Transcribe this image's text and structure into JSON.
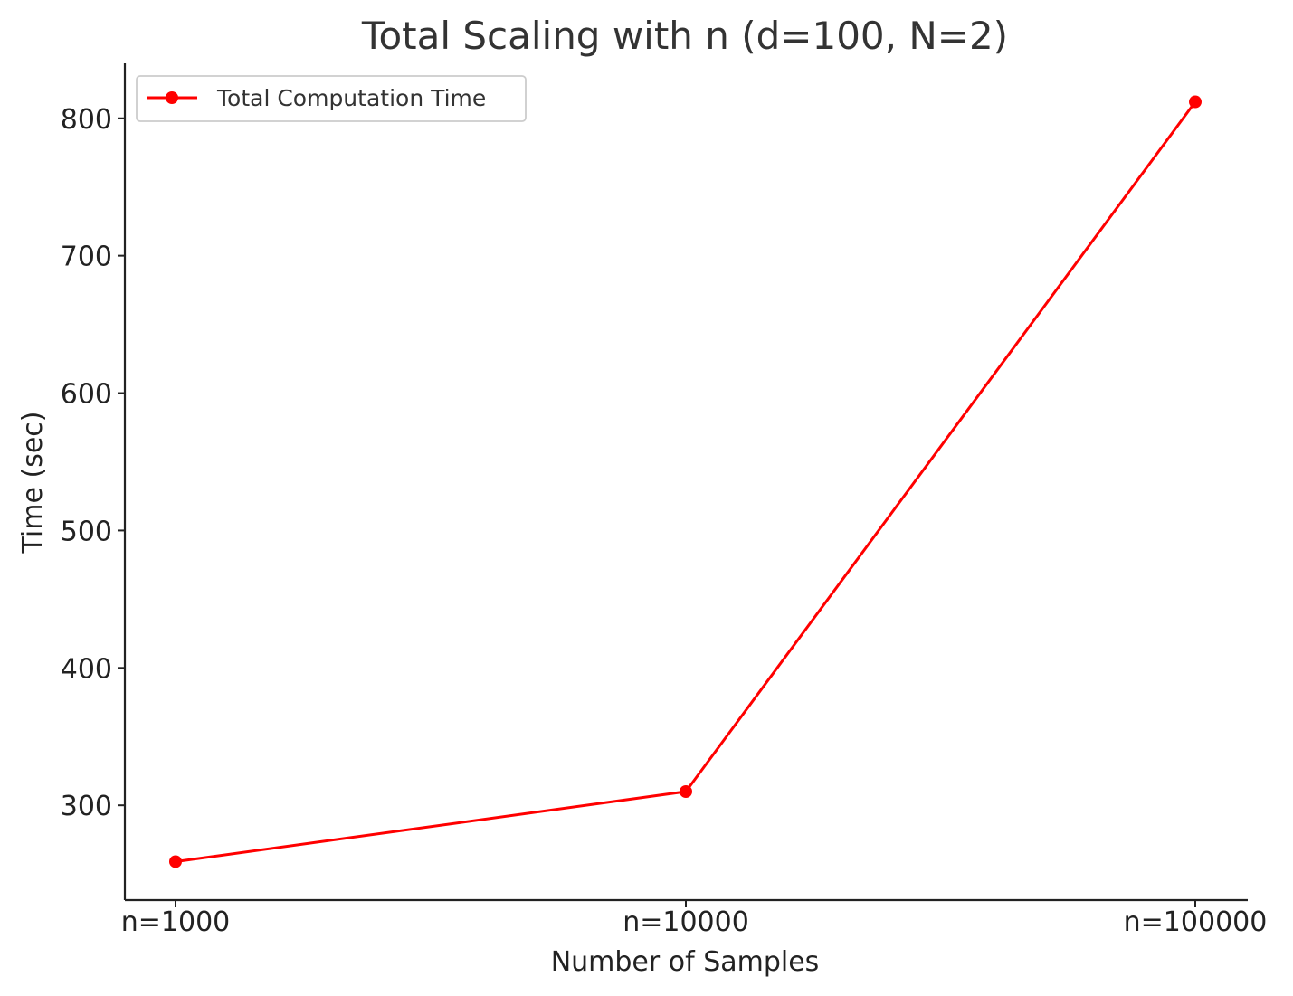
{
  "chart_data": {
    "type": "line",
    "title": "Total Scaling with n (d=100, N=2)",
    "xlabel": "Number of Samples",
    "ylabel": "Time (sec)",
    "categories": [
      "n=1000",
      "n=10000",
      "n=100000"
    ],
    "series": [
      {
        "name": "Total Computation Time",
        "values": [
          259,
          310,
          812
        ],
        "color": "#ff0000",
        "marker": "circle"
      }
    ],
    "yticks": [
      300,
      400,
      500,
      600,
      700,
      800
    ],
    "ylim": [
      231,
      840
    ],
    "legend": "top-left",
    "grid": false
  }
}
